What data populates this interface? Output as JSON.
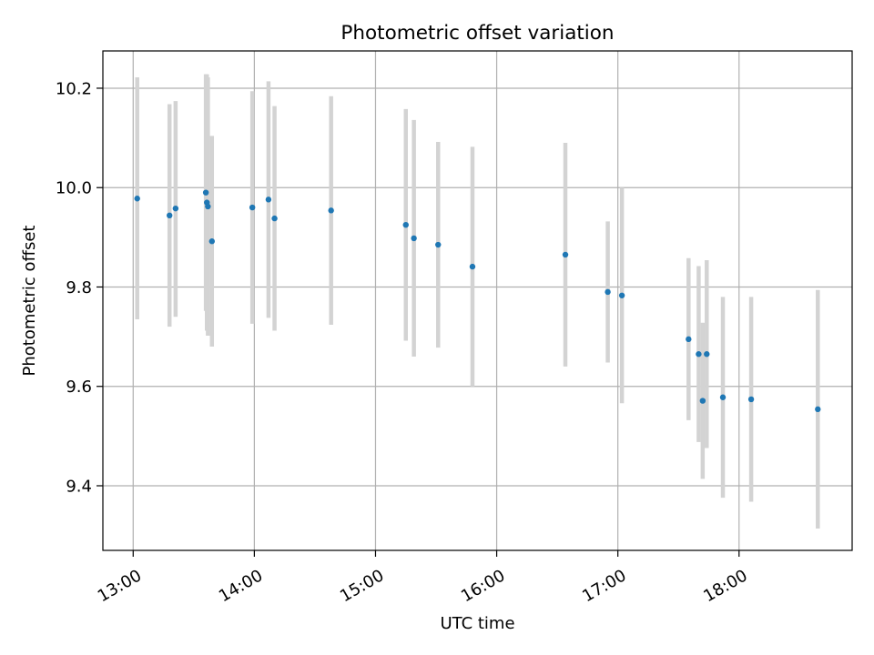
{
  "chart_data": {
    "type": "scatter",
    "title": "Photometric offset variation",
    "xlabel": "UTC time",
    "ylabel": "Photometric offset",
    "x_ticks": [
      "13:00",
      "14:00",
      "15:00",
      "16:00",
      "17:00",
      "18:00"
    ],
    "y_ticks": [
      "9.4",
      "9.6",
      "9.8",
      "10.0",
      "10.2"
    ],
    "xlim": [
      "12:45",
      "18:56"
    ],
    "ylim": [
      9.27,
      10.275
    ],
    "grid": true,
    "point_color": "#1f77b4",
    "errorbar_color": "#d3d3d3",
    "points": [
      {
        "x": "13:02",
        "y": 9.978,
        "low": 9.735,
        "high": 10.222
      },
      {
        "x": "13:18",
        "y": 9.944,
        "low": 9.72,
        "high": 10.168
      },
      {
        "x": "13:21",
        "y": 9.958,
        "low": 9.74,
        "high": 10.174
      },
      {
        "x": "13:36",
        "y": 9.99,
        "low": 9.752,
        "high": 10.228
      },
      {
        "x": "13:36.5",
        "y": 9.97,
        "low": 9.712,
        "high": 10.228
      },
      {
        "x": "13:37",
        "y": 9.962,
        "low": 9.702,
        "high": 10.222
      },
      {
        "x": "13:39",
        "y": 9.892,
        "low": 9.68,
        "high": 10.104
      },
      {
        "x": "13:59",
        "y": 9.96,
        "low": 9.726,
        "high": 10.194
      },
      {
        "x": "14:07",
        "y": 9.976,
        "low": 9.738,
        "high": 10.214
      },
      {
        "x": "14:10",
        "y": 9.938,
        "low": 9.712,
        "high": 10.164
      },
      {
        "x": "14:38",
        "y": 9.954,
        "low": 9.724,
        "high": 10.184
      },
      {
        "x": "15:15",
        "y": 9.925,
        "low": 9.692,
        "high": 10.158
      },
      {
        "x": "15:19",
        "y": 9.898,
        "low": 9.66,
        "high": 10.136
      },
      {
        "x": "15:31",
        "y": 9.885,
        "low": 9.678,
        "high": 10.092
      },
      {
        "x": "15:48",
        "y": 9.841,
        "low": 9.6,
        "high": 10.082
      },
      {
        "x": "16:34",
        "y": 9.865,
        "low": 9.64,
        "high": 10.09
      },
      {
        "x": "16:55",
        "y": 9.79,
        "low": 9.648,
        "high": 9.932
      },
      {
        "x": "17:02",
        "y": 9.783,
        "low": 9.566,
        "high": 10.0
      },
      {
        "x": "17:35",
        "y": 9.695,
        "low": 9.532,
        "high": 9.858
      },
      {
        "x": "17:40",
        "y": 9.665,
        "low": 9.488,
        "high": 9.842
      },
      {
        "x": "17:42",
        "y": 9.571,
        "low": 9.414,
        "high": 9.728
      },
      {
        "x": "17:44",
        "y": 9.665,
        "low": 9.476,
        "high": 9.854
      },
      {
        "x": "17:52",
        "y": 9.578,
        "low": 9.376,
        "high": 9.78
      },
      {
        "x": "18:06",
        "y": 9.574,
        "low": 9.368,
        "high": 9.78
      },
      {
        "x": "18:39",
        "y": 9.554,
        "low": 9.314,
        "high": 9.794
      }
    ]
  }
}
